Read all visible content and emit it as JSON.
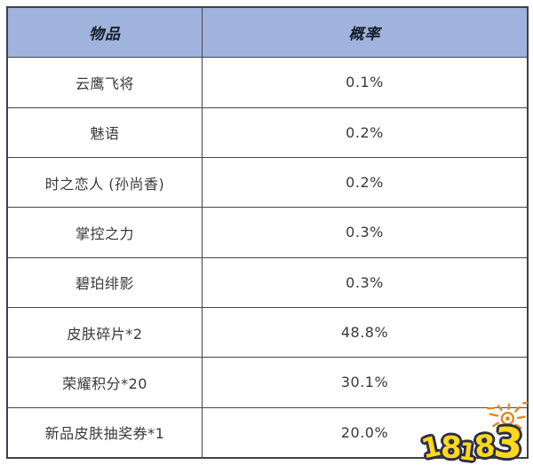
{
  "chart_data": {
    "type": "table",
    "title": "",
    "columns": [
      "物品",
      "概率"
    ],
    "rows": [
      [
        "云鹰飞将",
        "0.1%"
      ],
      [
        "魅语",
        "0.2%"
      ],
      [
        "时之恋人 (孙尚香)",
        "0.2%"
      ],
      [
        "掌控之力",
        "0.3%"
      ],
      [
        "碧珀绯影",
        "0.3%"
      ],
      [
        "皮肤碎片*2",
        "48.8%"
      ],
      [
        "荣耀积分*20",
        "30.1%"
      ],
      [
        "新品皮肤抽奖券*1",
        "20.0%"
      ]
    ],
    "layout_hints": {
      "header_bg": "#9fb3dc",
      "border_color": "#434549",
      "header_style": "bold-italic",
      "cell_align": "center"
    }
  },
  "watermark": {
    "text": "18183",
    "fill_color": "#fcd91a",
    "outline_color": "#2d2d45",
    "sun_color": "#e8851c"
  }
}
